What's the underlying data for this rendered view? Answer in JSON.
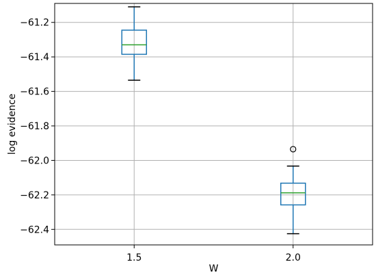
{
  "chart_data": {
    "type": "boxplot",
    "title": "",
    "xlabel": "W",
    "ylabel": "log evidence",
    "categories": [
      "1.5",
      "2.0"
    ],
    "ylim": [
      -62.49,
      -61.09
    ],
    "yticks": [
      -62.4,
      -62.2,
      -62.0,
      -61.8,
      -61.6,
      -61.4,
      -61.2
    ],
    "ytick_labels": [
      "−62.4",
      "−62.2",
      "−62.0",
      "−61.8",
      "−61.6",
      "−61.4",
      "−61.2"
    ],
    "grid": true,
    "legend": "none",
    "boxes": [
      {
        "category": "1.5",
        "whisker_low": -61.535,
        "q1": -61.385,
        "median": -61.33,
        "q3": -61.245,
        "whisker_high": -61.11,
        "outliers": []
      },
      {
        "category": "2.0",
        "whisker_low": -62.425,
        "q1": -62.258,
        "median": -62.188,
        "q3": -62.132,
        "whisker_high": -62.033,
        "outliers": [
          -61.935
        ]
      }
    ],
    "colors": {
      "box": "#1f77b4",
      "median": "#2ca02c",
      "whisker_cap": "#000000",
      "grid": "#b0b0b0",
      "axes": "#000000"
    }
  }
}
